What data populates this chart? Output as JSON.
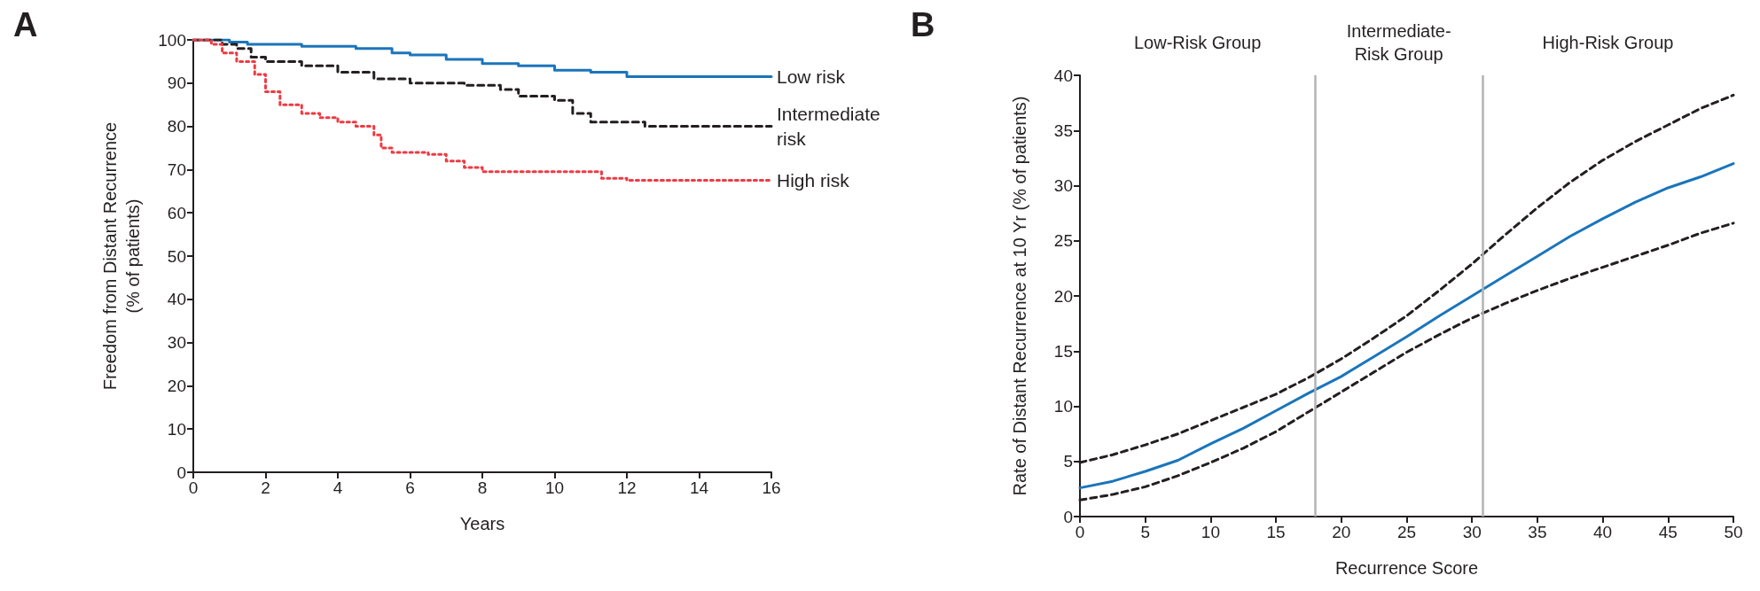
{
  "chart_data": [
    {
      "type": "step",
      "title": "A",
      "xlabel": "Years",
      "ylabel": "Freedom from Distant Recurrence\n(% of patients)",
      "xlim": [
        0,
        16
      ],
      "xticks": [
        0,
        2,
        4,
        6,
        8,
        10,
        12,
        14,
        16
      ],
      "ylim": [
        0,
        100
      ],
      "yticks": [
        0,
        10,
        20,
        30,
        40,
        50,
        60,
        70,
        80,
        90,
        100
      ],
      "grid": false,
      "legend": false,
      "marker": "none",
      "series": [
        {
          "name": "Low risk",
          "color": "#1a75bb",
          "line_style": "solid",
          "x": [
            0,
            1,
            1.5,
            3,
            4.5,
            5.5,
            6,
            7,
            8,
            9,
            10,
            11,
            12,
            16
          ],
          "values": [
            100,
            99.5,
            99,
            98.5,
            98,
            97,
            96.5,
            95.5,
            94.5,
            94,
            93,
            92.5,
            91.5,
            91.5
          ]
        },
        {
          "name": "Intermediate\nrisk",
          "color": "#231f20",
          "line_style": "dashed",
          "x": [
            0,
            0.8,
            1.2,
            1.6,
            2,
            3,
            4,
            5,
            6,
            7.5,
            8.5,
            9,
            10,
            10.5,
            11,
            12.5,
            16
          ],
          "values": [
            100,
            99,
            98,
            96,
            95,
            94,
            92.5,
            91,
            90,
            89.5,
            88.5,
            87,
            86,
            83,
            81,
            80,
            80
          ]
        },
        {
          "name": "High risk",
          "color": "#ee3a43",
          "line_style": "dotted",
          "x": [
            0,
            0.5,
            0.8,
            1.2,
            1.7,
            2,
            2.4,
            3,
            3.5,
            4,
            4.5,
            5,
            5.2,
            5.5,
            6.5,
            7,
            7.5,
            8,
            11,
            11.3,
            12,
            16
          ],
          "values": [
            100,
            99,
            97,
            95,
            92,
            88,
            85,
            83,
            82,
            81,
            80,
            78,
            75,
            74,
            73.5,
            72,
            70.5,
            69.5,
            69.5,
            68,
            67.5,
            67.5
          ]
        }
      ]
    },
    {
      "type": "line",
      "title": "B",
      "xlabel": "Recurrence Score",
      "ylabel": "Rate of Distant Recurrence at 10 Yr (% of patients)",
      "xlim": [
        0,
        50
      ],
      "xticks": [
        0,
        5,
        10,
        15,
        20,
        25,
        30,
        35,
        40,
        45,
        50
      ],
      "ylim": [
        0,
        40
      ],
      "yticks": [
        0,
        5,
        10,
        15,
        20,
        25,
        30,
        35,
        40
      ],
      "grid": false,
      "legend": false,
      "marker": "none",
      "ref_lines": [
        {
          "axis": "x",
          "value": 18,
          "color": "#b3b3b3"
        },
        {
          "axis": "x",
          "value": 30.8,
          "color": "#b3b3b3"
        }
      ],
      "annotations": [
        "Low-Risk Group",
        "Intermediate-\nRisk Group",
        "High-Risk Group"
      ],
      "series": [
        {
          "color": "#1a75bb",
          "line_style": "solid",
          "x": [
            0,
            2.5,
            5,
            7.5,
            10,
            12.5,
            15,
            17.5,
            20,
            22.5,
            25,
            27.5,
            30,
            32.5,
            35,
            37.5,
            40,
            42.5,
            45,
            47.5,
            50
          ],
          "values": [
            2.6,
            3.2,
            4.1,
            5.1,
            6.6,
            8.0,
            9.6,
            11.2,
            12.7,
            14.5,
            16.3,
            18.2,
            20.0,
            21.8,
            23.6,
            25.4,
            27.0,
            28.5,
            29.8,
            30.8,
            32.0
          ]
        },
        {
          "color": "#231f20",
          "line_style": "dashed",
          "x": [
            0,
            2.5,
            5,
            7.5,
            10,
            12.5,
            15,
            17.5,
            20,
            22.5,
            25,
            27.5,
            30,
            32.5,
            35,
            37.5,
            40,
            42.5,
            45,
            47.5,
            50
          ],
          "values": [
            1.5,
            2.0,
            2.7,
            3.7,
            4.9,
            6.2,
            7.7,
            9.5,
            11.3,
            13.1,
            14.9,
            16.5,
            18.0,
            19.3,
            20.5,
            21.6,
            22.6,
            23.6,
            24.6,
            25.7,
            26.6
          ]
        },
        {
          "color": "#231f20",
          "line_style": "dashed",
          "x": [
            0,
            2.5,
            5,
            7.5,
            10,
            12.5,
            15,
            17.5,
            20,
            22.5,
            25,
            27.5,
            30,
            32.5,
            35,
            37.5,
            40,
            42.5,
            45,
            47.5,
            50
          ],
          "values": [
            4.9,
            5.6,
            6.5,
            7.5,
            8.7,
            9.9,
            11.1,
            12.6,
            14.3,
            16.2,
            18.2,
            20.5,
            22.9,
            25.5,
            28.0,
            30.3,
            32.3,
            34.0,
            35.5,
            37.0,
            38.2
          ]
        }
      ]
    }
  ]
}
